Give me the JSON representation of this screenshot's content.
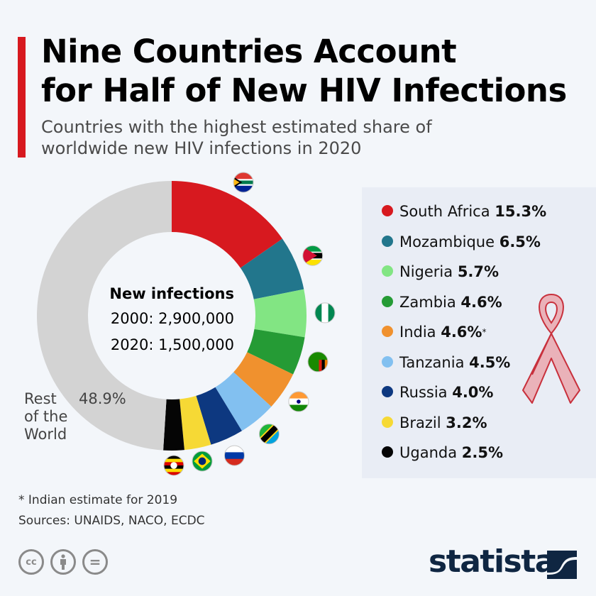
{
  "header": {
    "title_line1": "Nine Countries Account",
    "title_line2": "for Half of New HIV Infections",
    "subtitle_line1": "Countries with the highest estimated share of",
    "subtitle_line2": "worldwide new HIV infections in 2020",
    "accent_color": "#d7191f"
  },
  "center": {
    "heading": "New infections",
    "line_2000": "2000: 2,900,000",
    "line_2020": "2020: 1,500,000"
  },
  "rest": {
    "label_line1": "Rest",
    "label_line2": "of the",
    "label_line3": "World",
    "value": "48.9%"
  },
  "chart_data": {
    "type": "pie",
    "variant": "donut",
    "title": "Nine Countries Account for Half of New HIV Infections",
    "subtitle": "Countries with the highest estimated share of worldwide new HIV infections in 2020",
    "unit": "%",
    "start": "top",
    "direction": "clockwise",
    "slices": [
      {
        "label": "South Africa",
        "value": 15.3,
        "display": "15.3%",
        "color": "#d7191f",
        "flag": "south-africa"
      },
      {
        "label": "Mozambique",
        "value": 6.5,
        "display": "6.5%",
        "color": "#22768c",
        "flag": "mozambique"
      },
      {
        "label": "Nigeria",
        "value": 5.7,
        "display": "5.7%",
        "color": "#82e583",
        "flag": "nigeria"
      },
      {
        "label": "Zambia",
        "value": 4.6,
        "display": "4.6%",
        "color": "#259b35",
        "flag": "zambia"
      },
      {
        "label": "India",
        "value": 4.6,
        "display": "4.6%",
        "note": "*",
        "color": "#f0912e",
        "flag": "india"
      },
      {
        "label": "Tanzania",
        "value": 4.5,
        "display": "4.5%",
        "color": "#82c0f0",
        "flag": "tanzania"
      },
      {
        "label": "Russia",
        "value": 4.0,
        "display": "4.0%",
        "color": "#0d3880",
        "flag": "russia"
      },
      {
        "label": "Brazil",
        "value": 3.2,
        "display": "3.2%",
        "color": "#f6d935",
        "flag": "brazil"
      },
      {
        "label": "Uganda",
        "value": 2.5,
        "display": "2.5%",
        "color": "#050505",
        "flag": "uganda"
      },
      {
        "label": "Rest of the World",
        "value": 48.9,
        "display": "48.9%",
        "color": "#d3d3d3"
      }
    ]
  },
  "footer": {
    "note": "* Indian estimate for 2019",
    "sources": "Sources: UNAIDS, NACO, ECDC",
    "license_icons": [
      "cc-icon",
      "attribution-icon",
      "no-derivatives-icon"
    ],
    "cc_label": "cc",
    "nd_label": "=",
    "brand": "statista"
  }
}
